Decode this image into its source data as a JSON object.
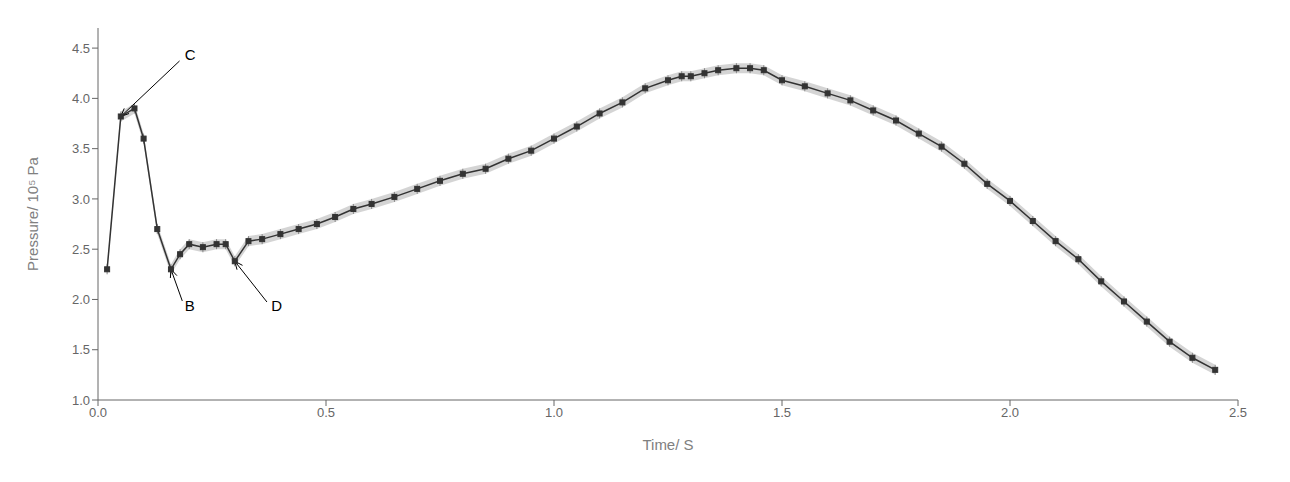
{
  "chart_data": {
    "type": "line",
    "xlabel": "Time/ S",
    "ylabel": "Pressure/ 10⁵ Pa",
    "xlim": [
      0.0,
      2.5
    ],
    "ylim": [
      1.0,
      4.7
    ],
    "xticks": [
      {
        "value": 0.0,
        "label": "0.0"
      },
      {
        "value": 0.5,
        "label": "0.5"
      },
      {
        "value": 1.0,
        "label": "1.0"
      },
      {
        "value": 1.5,
        "label": "1.5"
      },
      {
        "value": 2.0,
        "label": "2.0"
      },
      {
        "value": 2.5,
        "label": "2.5"
      }
    ],
    "yticks": [
      {
        "value": 1.0,
        "label": "1.0"
      },
      {
        "value": 1.5,
        "label": "1.5"
      },
      {
        "value": 2.0,
        "label": "2.0"
      },
      {
        "value": 2.5,
        "label": "2.5"
      },
      {
        "value": 3.0,
        "label": "3.0"
      },
      {
        "value": 3.5,
        "label": "3.5"
      },
      {
        "value": 4.0,
        "label": "4.0"
      },
      {
        "value": 4.5,
        "label": "4.5"
      }
    ],
    "grid": false,
    "color": "#333333",
    "marker": "square",
    "x": [
      0.02,
      0.05,
      0.08,
      0.1,
      0.13,
      0.16,
      0.18,
      0.2,
      0.23,
      0.26,
      0.28,
      0.3,
      0.33,
      0.36,
      0.4,
      0.44,
      0.48,
      0.52,
      0.56,
      0.6,
      0.65,
      0.7,
      0.75,
      0.8,
      0.85,
      0.9,
      0.95,
      1.0,
      1.05,
      1.1,
      1.15,
      1.2,
      1.25,
      1.28,
      1.3,
      1.33,
      1.36,
      1.4,
      1.43,
      1.46,
      1.5,
      1.55,
      1.6,
      1.65,
      1.7,
      1.75,
      1.8,
      1.85,
      1.9,
      1.95,
      2.0,
      2.05,
      2.1,
      2.15,
      2.2,
      2.25,
      2.3,
      2.35,
      2.4,
      2.45
    ],
    "values": [
      2.3,
      3.82,
      3.9,
      3.6,
      2.7,
      2.3,
      2.45,
      2.55,
      2.52,
      2.55,
      2.55,
      2.38,
      2.58,
      2.6,
      2.65,
      2.7,
      2.75,
      2.82,
      2.9,
      2.95,
      3.02,
      3.1,
      3.18,
      3.25,
      3.3,
      3.4,
      3.48,
      3.6,
      3.72,
      3.85,
      3.96,
      4.1,
      4.18,
      4.22,
      4.22,
      4.25,
      4.28,
      4.3,
      4.3,
      4.28,
      4.18,
      4.12,
      4.05,
      3.98,
      3.88,
      3.78,
      3.65,
      3.52,
      3.35,
      3.15,
      2.98,
      2.78,
      2.58,
      2.4,
      2.18,
      1.98,
      1.78,
      1.58,
      1.42,
      1.3
    ],
    "error": [
      0.05,
      0.05,
      0.05,
      0.05,
      0.05,
      0.05,
      0.05,
      0.05,
      0.05,
      0.05,
      0.05,
      0.05,
      0.05,
      0.05,
      0.05,
      0.05,
      0.05,
      0.05,
      0.05,
      0.05,
      0.05,
      0.05,
      0.05,
      0.05,
      0.05,
      0.05,
      0.05,
      0.05,
      0.05,
      0.05,
      0.05,
      0.05,
      0.05,
      0.05,
      0.05,
      0.05,
      0.05,
      0.05,
      0.05,
      0.05,
      0.05,
      0.05,
      0.05,
      0.05,
      0.05,
      0.05,
      0.05,
      0.05,
      0.05,
      0.05,
      0.05,
      0.05,
      0.05,
      0.05,
      0.05,
      0.05,
      0.05,
      0.05,
      0.05,
      0.05
    ],
    "annotations": [
      {
        "text": "C",
        "x": 0.05,
        "y": 3.82,
        "text_x": 0.19,
        "text_y": 4.42
      },
      {
        "text": "B",
        "x": 0.16,
        "y": 2.3,
        "text_x": 0.19,
        "text_y": 1.92
      },
      {
        "text": "D",
        "x": 0.3,
        "y": 2.38,
        "text_x": 0.38,
        "text_y": 1.92
      }
    ]
  }
}
